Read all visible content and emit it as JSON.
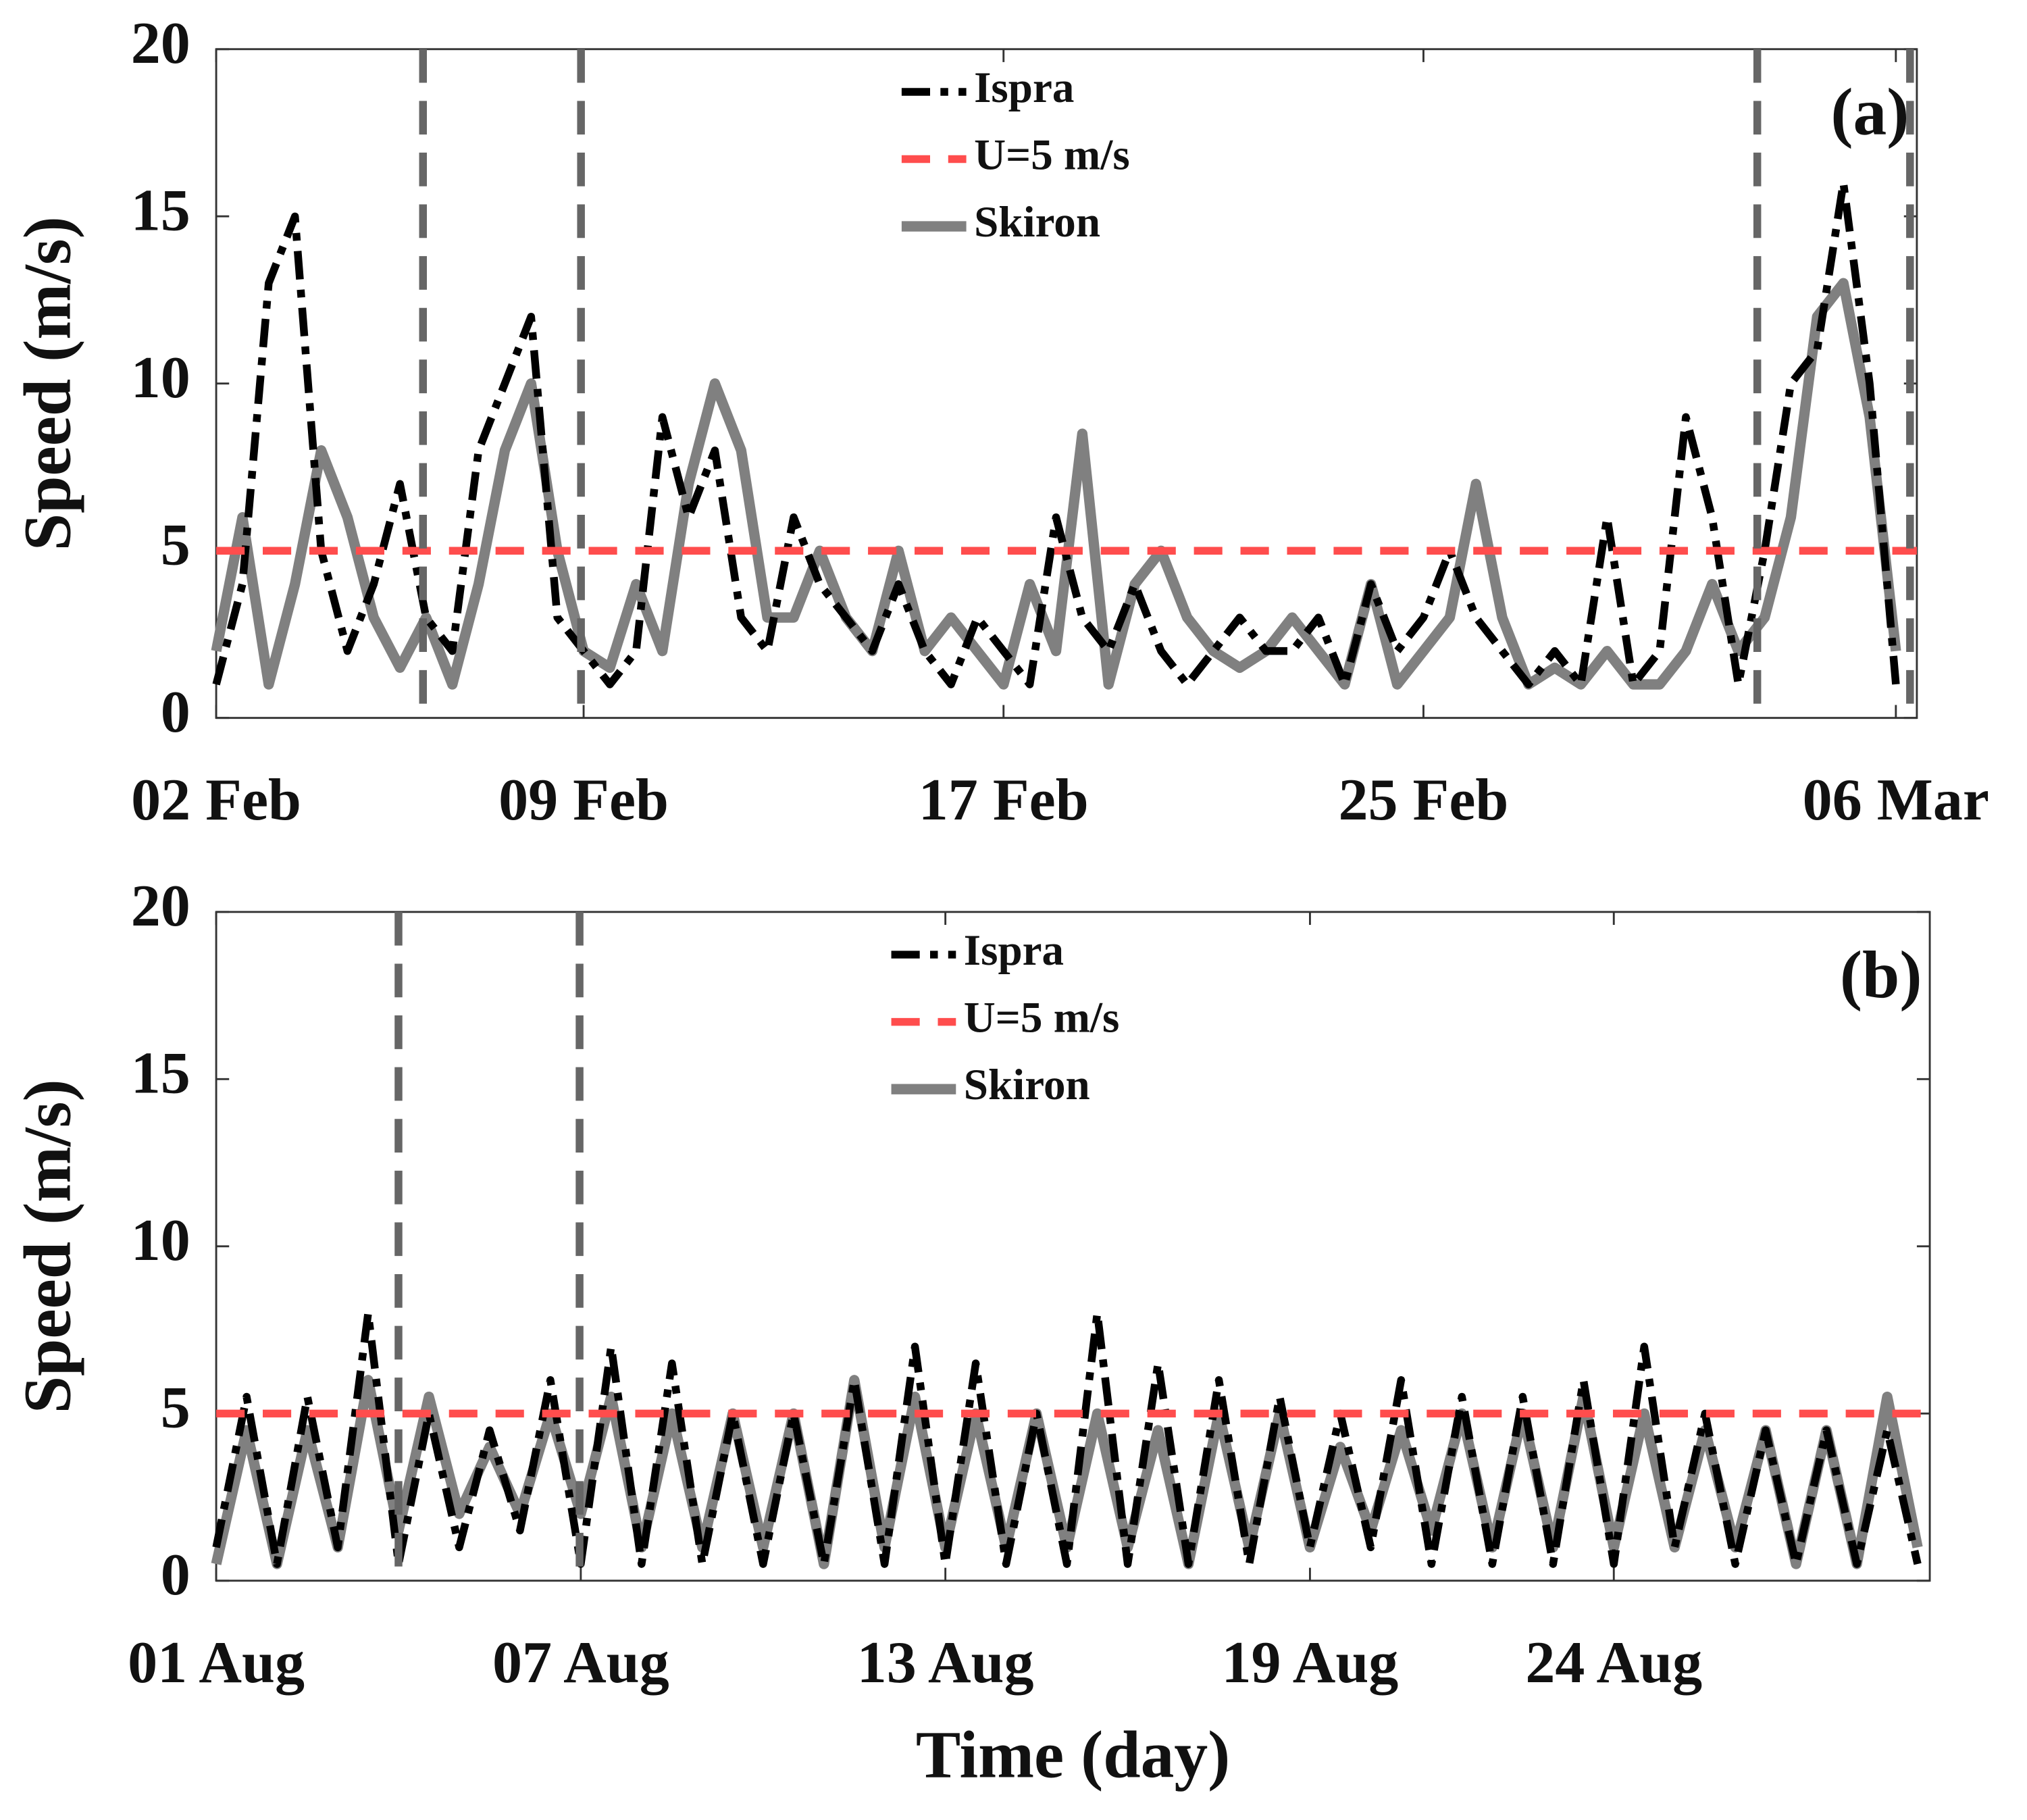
{
  "chart_data": [
    {
      "type": "line",
      "panel_label": "(a)",
      "ylabel": "Speed (m/s)",
      "legend": "upper center",
      "xlim": [
        0,
        32.4
      ],
      "xticks": [
        {
          "value": 0,
          "label": "02 Feb"
        },
        {
          "value": 7,
          "label": "09 Feb"
        },
        {
          "value": 15,
          "label": "17 Feb"
        },
        {
          "value": 23,
          "label": "25 Feb"
        },
        {
          "value": 32,
          "label": "06 Mar"
        }
      ],
      "ylim": [
        0,
        20
      ],
      "yticks": [
        0,
        5,
        10,
        15,
        20
      ],
      "vlines": [
        3.94,
        6.95,
        29.36,
        32.27
      ],
      "vline_color": "#666666",
      "series": [
        {
          "name": "Ispra",
          "color": "#000000",
          "style": "dashdot",
          "x": [
            0,
            0.5,
            1,
            1.5,
            2,
            2.5,
            3,
            3.5,
            4,
            4.5,
            5,
            5.5,
            6,
            6.5,
            7,
            7.5,
            8,
            8.5,
            9,
            9.5,
            10,
            10.5,
            11,
            11.5,
            12,
            12.5,
            13,
            13.5,
            14,
            14.5,
            15,
            15.5,
            16,
            16.5,
            17,
            17.5,
            18,
            18.5,
            19,
            19.5,
            20,
            20.5,
            21,
            21.5,
            22,
            22.5,
            23,
            23.5,
            24,
            24.5,
            25,
            25.5,
            26,
            26.5,
            27,
            27.5,
            28,
            28.5,
            29,
            29.5,
            30,
            30.5,
            31,
            31.5,
            32
          ],
          "values": [
            1,
            4,
            13,
            15,
            5,
            2,
            4,
            7,
            3,
            2,
            8,
            10,
            12,
            3,
            2,
            1,
            2,
            9,
            6,
            8,
            3,
            2,
            6,
            4,
            3,
            2,
            4,
            2,
            1,
            3,
            2,
            1,
            6,
            3,
            2,
            4,
            2,
            1,
            2,
            3,
            2,
            2,
            3,
            1,
            4,
            2,
            3,
            5,
            3,
            2,
            1,
            2,
            1,
            6,
            1,
            2,
            9,
            6,
            1,
            5,
            10,
            11,
            16,
            10,
            1
          ]
        },
        {
          "name": "U=5 m/s",
          "color": "#ff4d4d",
          "style": "dashed",
          "x": [
            0,
            32.4
          ],
          "values": [
            5,
            5
          ]
        },
        {
          "name": "Skiron",
          "color": "#808080",
          "style": "solid",
          "x": [
            0,
            0.5,
            1,
            1.5,
            2,
            2.5,
            3,
            3.5,
            4,
            4.5,
            5,
            5.5,
            6,
            6.5,
            7,
            7.5,
            8,
            8.5,
            9,
            9.5,
            10,
            10.5,
            11,
            11.5,
            12,
            12.5,
            13,
            13.5,
            14,
            14.5,
            15,
            15.5,
            16,
            16.5,
            17,
            17.5,
            18,
            18.5,
            19,
            19.5,
            20,
            20.5,
            21,
            21.5,
            22,
            22.5,
            23,
            23.5,
            24,
            24.5,
            25,
            25.5,
            26,
            26.5,
            27,
            27.5,
            28,
            28.5,
            29,
            29.5,
            30,
            30.5,
            31,
            31.5,
            32
          ],
          "values": [
            2,
            6,
            1,
            4,
            8,
            6,
            3,
            1.5,
            3,
            1,
            4,
            8,
            10,
            5,
            2,
            1.5,
            4,
            2,
            7,
            10,
            8,
            3,
            3,
            5,
            3,
            2,
            5,
            2,
            3,
            2,
            1,
            4,
            2,
            8.5,
            1,
            4,
            5,
            3,
            2,
            1.5,
            2,
            3,
            2,
            1,
            4,
            1,
            2,
            3,
            7,
            3,
            1,
            1.5,
            1,
            2,
            1,
            1,
            2,
            4,
            2,
            3,
            6,
            12,
            13,
            9,
            2
          ]
        }
      ]
    },
    {
      "type": "line",
      "panel_label": "(b)",
      "ylabel": "Speed (m/s)",
      "xlabel": "Time (day)",
      "legend": "upper center",
      "xlim": [
        0,
        28.2
      ],
      "xticks": [
        {
          "value": 0,
          "label": "01 Aug"
        },
        {
          "value": 6,
          "label": "07 Aug"
        },
        {
          "value": 12,
          "label": "13 Aug"
        },
        {
          "value": 18,
          "label": "19 Aug"
        },
        {
          "value": 23,
          "label": "24 Aug"
        }
      ],
      "ylim": [
        0,
        20
      ],
      "yticks": [
        0,
        5,
        10,
        15,
        20
      ],
      "vlines": [
        3.0,
        5.98
      ],
      "vline_color": "#666666",
      "series": [
        {
          "name": "Ispra",
          "color": "#000000",
          "style": "dashdot",
          "x": [
            0,
            0.5,
            1,
            1.5,
            2,
            2.5,
            3,
            3.5,
            4,
            4.5,
            5,
            5.5,
            6,
            6.5,
            7,
            7.5,
            8,
            8.5,
            9,
            9.5,
            10,
            10.5,
            11,
            11.5,
            12,
            12.5,
            13,
            13.5,
            14,
            14.5,
            15,
            15.5,
            16,
            16.5,
            17,
            17.5,
            18,
            18.5,
            19,
            19.5,
            20,
            20.5,
            21,
            21.5,
            22,
            22.5,
            23,
            23.5,
            24,
            24.5,
            25,
            25.5,
            26,
            26.5,
            27,
            27.5,
            28
          ],
          "values": [
            1,
            5.5,
            0.5,
            5.5,
            1,
            8,
            0.5,
            5,
            1,
            4.5,
            1.5,
            6,
            0.5,
            7,
            0.5,
            6.5,
            0.5,
            5,
            0.5,
            5,
            0.5,
            6,
            0.5,
            7,
            0.5,
            6.5,
            0.5,
            5,
            0.5,
            8,
            0.5,
            6.5,
            0.5,
            6,
            0.5,
            5.5,
            1,
            5,
            1,
            6,
            0.5,
            5.5,
            0.5,
            5.5,
            0.5,
            6,
            0.5,
            7,
            1,
            5,
            0.5,
            4.5,
            0.5,
            4.5,
            0.5,
            4.5,
            0.5
          ]
        },
        {
          "name": "U=5 m/s",
          "color": "#ff4d4d",
          "style": "dashed",
          "x": [
            0,
            28.2
          ],
          "values": [
            5,
            5
          ]
        },
        {
          "name": "Skiron",
          "color": "#808080",
          "style": "solid",
          "x": [
            0,
            0.5,
            1,
            1.5,
            2,
            2.5,
            3,
            3.5,
            4,
            4.5,
            5,
            5.5,
            6,
            6.5,
            7,
            7.5,
            8,
            8.5,
            9,
            9.5,
            10,
            10.5,
            11,
            11.5,
            12,
            12.5,
            13,
            13.5,
            14,
            14.5,
            15,
            15.5,
            16,
            16.5,
            17,
            17.5,
            18,
            18.5,
            19,
            19.5,
            20,
            20.5,
            21,
            21.5,
            22,
            22.5,
            23,
            23.5,
            24,
            24.5,
            25,
            25.5,
            26,
            26.5,
            27,
            27.5,
            28
          ],
          "values": [
            0.5,
            4.5,
            0.5,
            4.5,
            1,
            6,
            1.5,
            5.5,
            2,
            4,
            2,
            5,
            2,
            5.5,
            1,
            5,
            1,
            5,
            1,
            5,
            0.5,
            6,
            1,
            5.5,
            1,
            5,
            1,
            5,
            1,
            5,
            1,
            4.5,
            0.5,
            5,
            1,
            5,
            1,
            4,
            1.5,
            4.5,
            1.5,
            5,
            1,
            5,
            1,
            5.5,
            1,
            5,
            1,
            4.5,
            1,
            4.5,
            0.5,
            4.5,
            0.5,
            5.5,
            1
          ]
        }
      ]
    }
  ]
}
